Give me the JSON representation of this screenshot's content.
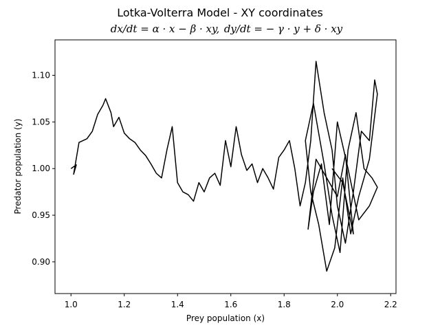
{
  "chart_data": {
    "type": "line",
    "title": "Lotka-Volterra Model - XY coordinates",
    "subtitle": {
      "eq1": "dx/dt = α · x − β · xy,",
      "eq2": "dy/dt = − γ · y + δ · xy"
    },
    "xlabel": "Prey population (x)",
    "ylabel": "Predator population (y)",
    "xlim": [
      0.94,
      2.22
    ],
    "ylim": [
      0.866,
      1.138
    ],
    "xticks": [
      1.0,
      1.2,
      1.4,
      1.6,
      1.8,
      2.0,
      2.2
    ],
    "xtick_labels": [
      "1.0",
      "1.2",
      "1.4",
      "1.6",
      "1.8",
      "2.0",
      "2.2"
    ],
    "yticks": [
      0.9,
      0.95,
      1.0,
      1.05,
      1.1
    ],
    "ytick_labels": [
      "0.90",
      "0.95",
      "1.00",
      "1.05",
      "1.10"
    ],
    "grid": false,
    "line_color": "#000000",
    "series": [
      {
        "x": [
          1.0,
          1.02,
          1.01,
          1.03,
          1.06,
          1.08,
          1.1,
          1.12,
          1.13,
          1.15,
          1.16,
          1.18,
          1.2,
          1.22,
          1.24,
          1.26,
          1.28,
          1.3,
          1.32,
          1.34,
          1.36,
          1.38,
          1.4,
          1.42,
          1.44,
          1.46,
          1.48,
          1.5,
          1.52,
          1.54,
          1.56,
          1.58,
          1.6,
          1.62,
          1.64,
          1.66,
          1.68,
          1.7,
          1.72,
          1.74,
          1.76,
          1.78,
          1.8,
          1.82,
          1.84,
          1.86,
          1.88,
          1.9,
          1.92,
          1.95,
          1.98,
          2.0,
          2.03,
          2.06,
          2.09,
          2.12,
          2.14,
          2.15,
          2.12,
          2.08,
          2.05,
          2.02,
          1.99,
          1.96,
          1.93,
          1.9,
          1.88,
          1.91,
          1.95,
          1.98,
          2.01,
          2.04,
          2.07,
          2.1,
          2.13,
          2.15,
          2.12,
          2.08,
          2.04,
          2.0,
          1.97,
          1.94,
          1.91,
          1.89,
          1.92,
          1.96,
          2.0,
          2.03,
          2.06,
          2.02,
          1.98
        ],
        "y": [
          1.0,
          1.004,
          0.994,
          1.028,
          1.032,
          1.04,
          1.058,
          1.068,
          1.075,
          1.06,
          1.045,
          1.055,
          1.038,
          1.032,
          1.028,
          1.02,
          1.014,
          1.005,
          0.995,
          0.99,
          1.02,
          1.045,
          0.985,
          0.975,
          0.972,
          0.965,
          0.985,
          0.975,
          0.99,
          0.995,
          0.982,
          1.03,
          1.002,
          1.045,
          1.015,
          0.998,
          1.005,
          0.985,
          1.0,
          0.99,
          0.978,
          1.012,
          1.02,
          1.03,
          1.0,
          0.96,
          0.985,
          1.03,
          1.115,
          1.06,
          1.02,
          0.96,
          0.92,
          0.975,
          1.04,
          1.03,
          1.095,
          1.08,
          1.01,
          0.97,
          0.93,
          0.99,
          0.915,
          0.89,
          0.94,
          0.975,
          1.03,
          1.07,
          1.005,
          0.95,
          0.91,
          1.02,
          1.06,
          1.0,
          0.99,
          0.98,
          0.96,
          0.945,
          1.0,
          1.05,
          0.94,
          1.005,
          0.975,
          0.935,
          1.01,
          0.99,
          0.97,
          1.015,
          0.93,
          0.985,
          1.0
        ]
      }
    ]
  }
}
